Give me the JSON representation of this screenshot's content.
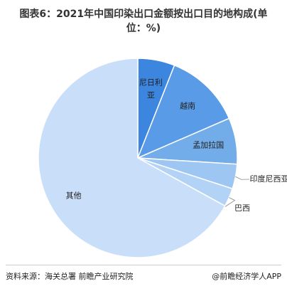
{
  "chart_data": {
    "type": "pie",
    "title": "图表6：2021年中国印染出口金额按出口目的地构成(单位：%)",
    "categories": [
      "尼日利亚",
      "越南",
      "孟加拉国",
      "印度尼西亚",
      "巴西",
      "其他"
    ],
    "values": [
      6,
      12.5,
      7.5,
      4,
      3,
      67
    ],
    "colors": [
      "#3d86e0",
      "#5a9be8",
      "#72ace9",
      "#9dc6f2",
      "#b2d3f6",
      "#c8def9"
    ],
    "source": "资料来源：海关总署 前瞻产业研究院",
    "brand": "@前瞻经济学人APP"
  }
}
